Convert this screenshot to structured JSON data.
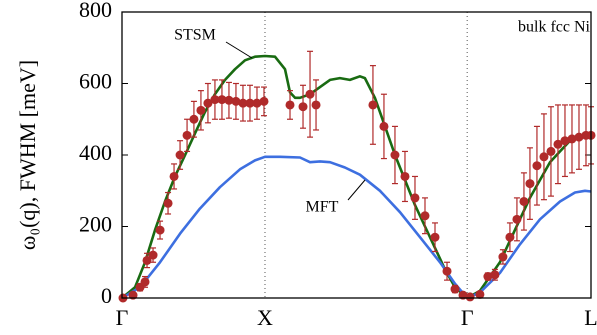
{
  "chart_data": {
    "type": "line",
    "title": "bulk fcc Ni",
    "y_label": "ω₀(q), FWHM [meV]",
    "xlim": [
      0,
      3.28
    ],
    "xticks": [
      {
        "value": 0,
        "label": "Γ"
      },
      {
        "value": 1,
        "label": "X"
      },
      {
        "value": 2.414,
        "label": "Γ"
      },
      {
        "value": 3.28,
        "label": "L"
      }
    ],
    "xgrid": true,
    "ylim": [
      0,
      800
    ],
    "yticks": [
      0,
      200,
      400,
      600,
      800
    ],
    "series": [
      {
        "name": "STSM",
        "color": "#196b12",
        "x": [
          0,
          0.091,
          0.161,
          0.231,
          0.301,
          0.371,
          0.441,
          0.51,
          0.58,
          0.65,
          0.72,
          0.79,
          0.86,
          0.93,
          1.0,
          1.07,
          1.14,
          1.175,
          1.21,
          1.245,
          1.315,
          1.385,
          1.455,
          1.524,
          1.594,
          1.664,
          1.699,
          1.769,
          1.839,
          1.909,
          1.979,
          2.049,
          2.119,
          2.189,
          2.259,
          2.329,
          2.399,
          2.414,
          2.503,
          2.573,
          2.643,
          2.713,
          2.783,
          2.853,
          2.923,
          2.993,
          3.063,
          3.133,
          3.203,
          3.28
        ],
        "values": [
          0,
          30,
          100,
          190,
          270,
          340,
          400,
          460,
          520,
          570,
          610,
          640,
          665,
          675,
          677,
          675,
          640,
          575,
          560,
          560,
          570,
          590,
          610,
          615,
          610,
          620,
          615,
          560,
          480,
          400,
          330,
          260,
          200,
          140,
          80,
          30,
          5,
          0,
          20,
          60,
          100,
          160,
          220,
          280,
          330,
          380,
          410,
          440,
          455,
          460
        ]
      },
      {
        "name": "MFT",
        "color": "#3d6fe0",
        "x": [
          0,
          0.126,
          0.266,
          0.406,
          0.545,
          0.685,
          0.825,
          0.93,
          1.0,
          1.105,
          1.245,
          1.315,
          1.385,
          1.455,
          1.559,
          1.664,
          1.804,
          1.944,
          2.084,
          2.224,
          2.329,
          2.414,
          2.503,
          2.643,
          2.783,
          2.923,
          3.063,
          3.168,
          3.238,
          3.28
        ],
        "values": [
          0,
          30,
          100,
          180,
          250,
          310,
          360,
          385,
          395,
          395,
          393,
          380,
          382,
          380,
          365,
          345,
          300,
          240,
          170,
          100,
          40,
          0,
          15,
          70,
          150,
          220,
          270,
          295,
          300,
          298
        ]
      }
    ],
    "points": {
      "color": "#b02a2a",
      "x": [
        0.007,
        0.077,
        0.126,
        0.161,
        0.175,
        0.217,
        0.266,
        0.322,
        0.364,
        0.406,
        0.455,
        0.503,
        0.552,
        0.601,
        0.65,
        0.699,
        0.748,
        0.797,
        0.846,
        0.895,
        0.944,
        0.993,
        1.175,
        1.266,
        1.315,
        1.357,
        1.755,
        1.832,
        1.909,
        1.979,
        2.049,
        2.119,
        2.189,
        2.273,
        2.329,
        2.385,
        2.434,
        2.503,
        2.559,
        2.608,
        2.664,
        2.713,
        2.762,
        2.811,
        2.853,
        2.902,
        2.951,
        3.0,
        3.049,
        3.098,
        3.147,
        3.196,
        3.245,
        3.28
      ],
      "values": [
        0,
        8,
        30,
        45,
        105,
        120,
        190,
        265,
        340,
        400,
        455,
        500,
        525,
        545,
        555,
        555,
        553,
        550,
        545,
        545,
        545,
        550,
        540,
        535,
        570,
        540,
        540,
        480,
        400,
        340,
        280,
        230,
        170,
        75,
        25,
        8,
        3,
        10,
        60,
        65,
        115,
        170,
        220,
        270,
        320,
        370,
        395,
        410,
        430,
        440,
        445,
        450,
        455,
        455
      ],
      "errors": [
        0,
        5,
        10,
        15,
        20,
        20,
        25,
        30,
        35,
        40,
        45,
        50,
        55,
        55,
        55,
        55,
        50,
        50,
        50,
        50,
        45,
        40,
        40,
        60,
        120,
        70,
        110,
        90,
        80,
        70,
        60,
        50,
        40,
        25,
        10,
        5,
        3,
        5,
        10,
        15,
        20,
        40,
        60,
        80,
        100,
        110,
        120,
        125,
        110,
        100,
        95,
        90,
        85,
        80
      ]
    }
  }
}
